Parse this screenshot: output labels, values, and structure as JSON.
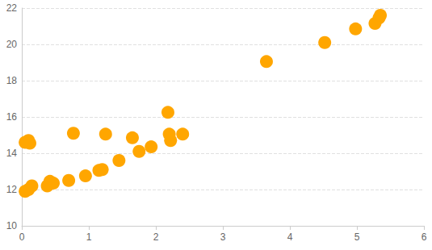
{
  "chart_data": {
    "type": "scatter",
    "color": "#ffa600",
    "grid": true,
    "x": [
      0.05,
      0.1,
      0.12,
      0.05,
      0.1,
      0.15,
      0.38,
      0.42,
      0.47,
      0.7,
      0.95,
      1.15,
      1.2,
      0.77,
      1.25,
      1.45,
      1.65,
      1.75,
      1.93,
      2.18,
      2.2,
      2.22,
      2.4,
      3.65,
      4.52,
      4.98,
      5.27,
      5.33,
      5.35
    ],
    "values": [
      14.6,
      14.7,
      14.55,
      11.9,
      12.0,
      12.2,
      12.2,
      12.45,
      12.35,
      12.5,
      12.75,
      13.05,
      13.1,
      15.1,
      15.05,
      13.6,
      14.85,
      14.1,
      14.35,
      16.25,
      15.05,
      14.7,
      15.05,
      19.05,
      20.1,
      20.85,
      21.15,
      21.45,
      21.6
    ],
    "xlim": [
      0,
      6
    ],
    "xticks": [
      0,
      1,
      2,
      3,
      4,
      5,
      6
    ],
    "ylim": [
      10,
      22
    ],
    "yticks": [
      10,
      12,
      14,
      16,
      18,
      20,
      22
    ]
  }
}
